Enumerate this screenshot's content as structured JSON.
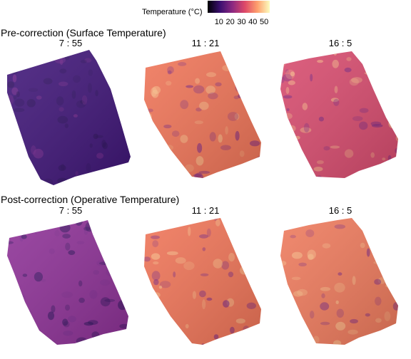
{
  "legend": {
    "title": "Temperature (°C)",
    "ticks": [
      10,
      20,
      30,
      40,
      50
    ],
    "range": [
      0,
      55
    ],
    "colormap": "magma",
    "colors": [
      "#000004",
      "#3b0f70",
      "#8c2981",
      "#de4968",
      "#fe9f6d",
      "#fcfdbf"
    ]
  },
  "rows": [
    {
      "title": "Pre-correction (Surface Temperature)",
      "panels": [
        {
          "title": "7 : 55",
          "mean_temp_c": 14,
          "color": "#3f1578"
        },
        {
          "title": "11 : 21",
          "mean_temp_c": 44,
          "color": "#f07457"
        },
        {
          "title": "16 : 5",
          "mean_temp_c": 36,
          "color": "#d84b6e"
        }
      ]
    },
    {
      "title": "Post-correction (Operative Temperature)",
      "panels": [
        {
          "title": "7 : 55",
          "mean_temp_c": 21,
          "color": "#8d3096"
        },
        {
          "title": "11 : 21",
          "mean_temp_c": 44,
          "color": "#f07457"
        },
        {
          "title": "16 : 5",
          "mean_temp_c": 43,
          "color": "#ef7a5c"
        }
      ]
    }
  ],
  "chart_data": {
    "type": "heatmap",
    "title": "",
    "colorbar_label": "Temperature (°C)",
    "colorbar_ticks": [
      10,
      20,
      30,
      40,
      50
    ],
    "rows": [
      "Pre-correction (Surface Temperature)",
      "Post-correction (Operative Temperature)"
    ],
    "columns": [
      "7 : 55",
      "11 : 21",
      "16 : 5"
    ],
    "approx_mean_values": [
      [
        14,
        44,
        36
      ],
      [
        21,
        44,
        43
      ]
    ]
  }
}
